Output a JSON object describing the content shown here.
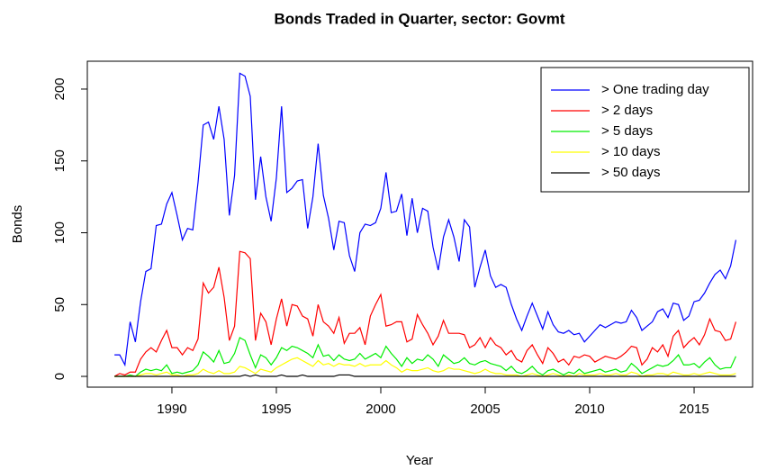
{
  "chart_data": {
    "type": "line",
    "title": "Bonds Traded in Quarter, sector: Govmt",
    "xlabel": "Year",
    "ylabel": "Bonds",
    "x": [
      1987.25,
      1987.5,
      1987.75,
      1988,
      1988.25,
      1988.5,
      1988.75,
      1989,
      1989.25,
      1989.5,
      1989.75,
      1990,
      1990.25,
      1990.5,
      1990.75,
      1991,
      1991.25,
      1991.5,
      1991.75,
      1992,
      1992.25,
      1992.5,
      1992.75,
      1993,
      1993.25,
      1993.5,
      1993.75,
      1994,
      1994.25,
      1994.5,
      1994.75,
      1995,
      1995.25,
      1995.5,
      1995.75,
      1996,
      1996.25,
      1996.5,
      1996.75,
      1997,
      1997.25,
      1997.5,
      1997.75,
      1998,
      1998.25,
      1998.5,
      1998.75,
      1999,
      1999.25,
      1999.5,
      1999.75,
      2000,
      2000.25,
      2000.5,
      2000.75,
      2001,
      2001.25,
      2001.5,
      2001.75,
      2002,
      2002.25,
      2002.5,
      2002.75,
      2003,
      2003.25,
      2003.5,
      2003.75,
      2004,
      2004.25,
      2004.5,
      2004.75,
      2005,
      2005.25,
      2005.5,
      2005.75,
      2006,
      2006.25,
      2006.5,
      2006.75,
      2007,
      2007.25,
      2007.5,
      2007.75,
      2008,
      2008.25,
      2008.5,
      2008.75,
      2009,
      2009.25,
      2009.5,
      2009.75,
      2010,
      2010.25,
      2010.5,
      2010.75,
      2011,
      2011.25,
      2011.5,
      2011.75,
      2012,
      2012.25,
      2012.5,
      2012.75,
      2013,
      2013.25,
      2013.5,
      2013.75,
      2014,
      2014.25,
      2014.5,
      2014.75,
      2015,
      2015.25,
      2015.5,
      2015.75,
      2016,
      2016.25,
      2016.5,
      2016.75,
      2017
    ],
    "series": [
      {
        "name": "> One trading day",
        "color": "#0000ff",
        "values": [
          15,
          15,
          8,
          38,
          24,
          52,
          73,
          75,
          105,
          106,
          120,
          128,
          112,
          95,
          103,
          102,
          135,
          175,
          177,
          165,
          188,
          165,
          112,
          140,
          211,
          209,
          195,
          123,
          153,
          125,
          108,
          138,
          188,
          128,
          131,
          136,
          137,
          103,
          125,
          162,
          126,
          110,
          88,
          108,
          107,
          84,
          73,
          100,
          106,
          105,
          107,
          117,
          142,
          114,
          115,
          127,
          98,
          124,
          100,
          117,
          115,
          90,
          74,
          97,
          109,
          97,
          80,
          109,
          104,
          62,
          76,
          88,
          70,
          62,
          64,
          62,
          50,
          40,
          32,
          42,
          51,
          42,
          33,
          45,
          36,
          31,
          30,
          32,
          29,
          30,
          24,
          28,
          32,
          36,
          34,
          36,
          38,
          37,
          38,
          46,
          41,
          32,
          35,
          38,
          45,
          47,
          41,
          51,
          50,
          39,
          42,
          52,
          53,
          58,
          65,
          71,
          74,
          68,
          77,
          95
        ]
      },
      {
        "name": "> 2 days",
        "color": "#ff0000",
        "values": [
          0,
          2,
          1,
          3,
          3,
          12,
          17,
          20,
          17,
          25,
          32,
          20,
          20,
          15,
          20,
          18,
          26,
          65,
          58,
          62,
          76,
          55,
          25,
          35,
          87,
          86,
          82,
          25,
          44,
          38,
          22,
          40,
          54,
          35,
          50,
          49,
          42,
          40,
          28,
          50,
          38,
          35,
          30,
          41,
          23,
          30,
          30,
          34,
          22,
          42,
          50,
          57,
          35,
          36,
          38,
          38,
          24,
          26,
          43,
          36,
          30,
          22,
          28,
          39,
          30,
          30,
          30,
          29,
          20,
          22,
          27,
          20,
          27,
          22,
          20,
          15,
          18,
          12,
          10,
          18,
          22,
          15,
          9,
          20,
          16,
          10,
          12,
          8,
          14,
          13,
          15,
          14,
          10,
          12,
          14,
          13,
          12,
          14,
          17,
          21,
          20,
          8,
          12,
          20,
          17,
          22,
          14,
          28,
          32,
          20,
          24,
          27,
          22,
          29,
          40,
          32,
          31,
          25,
          26,
          38
        ]
      },
      {
        "name": "> 5 days",
        "color": "#00ee00",
        "values": [
          0,
          0,
          0,
          1,
          0,
          3,
          5,
          4,
          5,
          4,
          8,
          2,
          3,
          2,
          3,
          4,
          8,
          17,
          14,
          10,
          18,
          9,
          10,
          16,
          27,
          25,
          15,
          6,
          15,
          13,
          8,
          13,
          20,
          18,
          21,
          20,
          18,
          16,
          13,
          22,
          14,
          15,
          11,
          15,
          12,
          11,
          12,
          16,
          12,
          14,
          16,
          13,
          21,
          16,
          12,
          7,
          13,
          9,
          12,
          11,
          15,
          12,
          7,
          15,
          12,
          9,
          10,
          13,
          9,
          8,
          10,
          11,
          9,
          8,
          7,
          4,
          7,
          3,
          2,
          4,
          7,
          3,
          1,
          4,
          5,
          3,
          1,
          3,
          2,
          5,
          2,
          3,
          4,
          5,
          3,
          4,
          5,
          3,
          4,
          9,
          6,
          2,
          4,
          6,
          8,
          7,
          8,
          11,
          15,
          8,
          8,
          9,
          6,
          10,
          13,
          8,
          5,
          6,
          6,
          14
        ]
      },
      {
        "name": "> 10 days",
        "color": "#ffff00",
        "values": [
          0,
          0,
          0,
          0,
          0,
          1,
          2,
          2,
          1,
          2,
          3,
          1,
          1,
          0,
          1,
          1,
          2,
          5,
          3,
          2,
          4,
          2,
          2,
          3,
          7,
          6,
          4,
          2,
          5,
          4,
          3,
          6,
          8,
          10,
          12,
          13,
          11,
          9,
          7,
          11,
          8,
          9,
          7,
          9,
          8,
          8,
          7,
          9,
          7,
          8,
          8,
          8,
          11,
          8,
          6,
          3,
          5,
          4,
          4,
          5,
          6,
          4,
          3,
          4,
          6,
          5,
          5,
          4,
          3,
          2,
          3,
          5,
          3,
          2,
          2,
          1,
          1,
          1,
          0,
          1,
          2,
          1,
          0,
          1,
          2,
          1,
          0,
          1,
          0,
          2,
          1,
          1,
          1,
          2,
          1,
          1,
          2,
          1,
          1,
          3,
          2,
          0,
          1,
          1,
          2,
          2,
          1,
          3,
          2,
          1,
          1,
          2,
          1,
          2,
          3,
          2,
          1,
          1,
          1,
          2
        ]
      },
      {
        "name": "> 50 days",
        "color": "#000000",
        "values": [
          0,
          0,
          0,
          0,
          0,
          0,
          0,
          0,
          0,
          0,
          0,
          0,
          0,
          0,
          0,
          0,
          0,
          0,
          0,
          0,
          0,
          0,
          0,
          0,
          0,
          1,
          0,
          1,
          0,
          0,
          0,
          0,
          1,
          0,
          0,
          0,
          1,
          0,
          0,
          0,
          0,
          0,
          0,
          1,
          1,
          1,
          0,
          0,
          0,
          0,
          0,
          0,
          0,
          0,
          0,
          0,
          0,
          0,
          0,
          0,
          0,
          0,
          0,
          0,
          0,
          0,
          0,
          0,
          0,
          0,
          0,
          0,
          0,
          0,
          0,
          0,
          0,
          0,
          0,
          0,
          0,
          0,
          0,
          0,
          0,
          0,
          0,
          0,
          0,
          0,
          0,
          0,
          0,
          0,
          0,
          0,
          0,
          0,
          0,
          0,
          0,
          0,
          0,
          0,
          0,
          0,
          0,
          0,
          0,
          0,
          0,
          0,
          0,
          0,
          0,
          0,
          0,
          0,
          0,
          0
        ]
      }
    ],
    "xlim": [
      1985.95,
      2017.8
    ],
    "ylim": [
      -7.5,
      219.4
    ],
    "xticks": [
      1990,
      1995,
      2000,
      2005,
      2010,
      2015
    ],
    "yticks": [
      0,
      50,
      100,
      150,
      200
    ],
    "legend": "topright"
  }
}
